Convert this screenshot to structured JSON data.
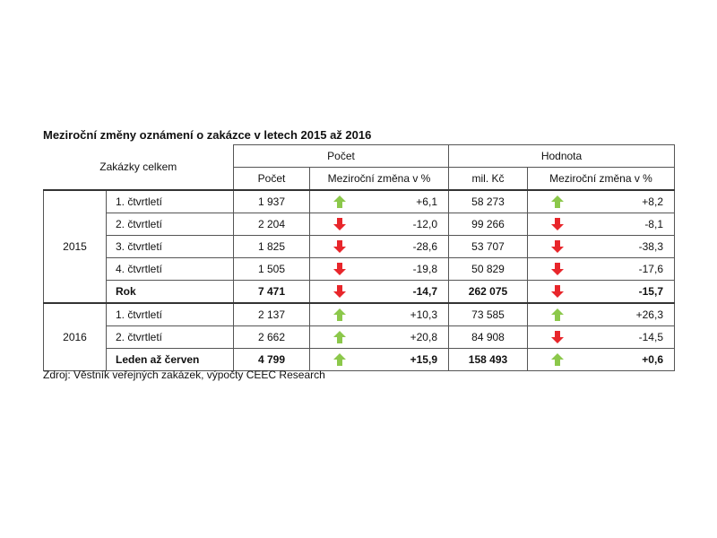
{
  "title": "Meziroční změny oznámení o zakázce v letech 2015 až 2016",
  "table": {
    "header": {
      "label": "Zakázky celkem",
      "groups": [
        "Počet",
        "Hodnota"
      ],
      "columns": [
        "Počet",
        "Meziroční změna v %",
        "mil. Kč",
        "Meziroční změna v %"
      ]
    },
    "groups": [
      {
        "year": "2015",
        "rows": [
          {
            "label": "1. čtvrtletí",
            "count": "1 937",
            "count_change": "+6,1",
            "value": "58 273",
            "value_change": "+8,2"
          },
          {
            "label": "2. čtvrtletí",
            "count": "2 204",
            "count_change": "-12,0",
            "value": "99 266",
            "value_change": "-8,1"
          },
          {
            "label": "3. čtvrtletí",
            "count": "1 825",
            "count_change": "-28,6",
            "value": "53 707",
            "value_change": "-38,3"
          },
          {
            "label": "4. čtvrtletí",
            "count": "1 505",
            "count_change": "-19,8",
            "value": "50 829",
            "value_change": "-17,6"
          },
          {
            "label": "Rok",
            "count": "7 471",
            "count_change": "-14,7",
            "value": "262 075",
            "value_change": "-15,7"
          }
        ]
      },
      {
        "year": "2016",
        "rows": [
          {
            "label": "1. čtvrtletí",
            "count": "2 137",
            "count_change": "+10,3",
            "value": "73 585",
            "value_change": "+26,3"
          },
          {
            "label": "2. čtvrtletí",
            "count": "2 662",
            "count_change": "+20,8",
            "value": "84 908",
            "value_change": "-14,5"
          },
          {
            "label": "Leden až červen",
            "count": "4 799",
            "count_change": "+15,9",
            "value": "158 493",
            "value_change": "+0,6"
          }
        ]
      }
    ]
  },
  "source": "Zdroj: Věstník veřejných zakázek, výpočty CEEC Research"
}
